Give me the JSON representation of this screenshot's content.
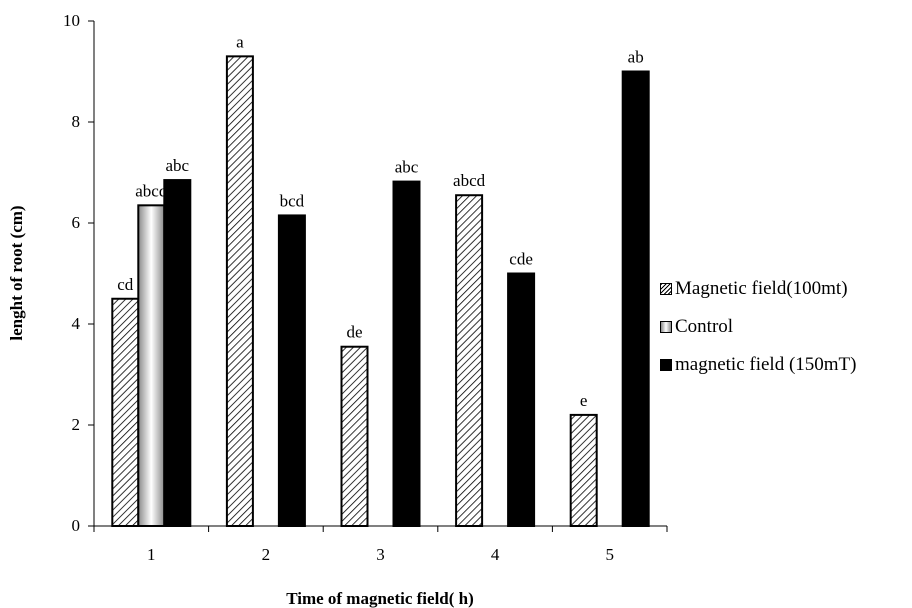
{
  "chart_data": {
    "type": "bar",
    "xlabel": "Time of magnetic field( h)",
    "ylabel": "lenght  of root (cm)",
    "ylim": [
      0,
      10
    ],
    "yticks": [
      "0",
      "2",
      "4",
      "6",
      "8",
      "10"
    ],
    "categories": [
      "1",
      "2",
      "3",
      "4",
      "5"
    ],
    "series": [
      {
        "name": "Magnetic field(100mt)",
        "values": [
          4.5,
          9.3,
          3.55,
          6.55,
          2.2
        ],
        "labels": [
          "cd",
          "a",
          "de",
          "abcd",
          "e"
        ]
      },
      {
        "name": "Control",
        "values": [
          6.35,
          null,
          null,
          null,
          null
        ],
        "labels": [
          "abcd",
          "",
          "",
          "",
          ""
        ]
      },
      {
        "name": "magnetic field (150mT)",
        "values": [
          6.85,
          6.15,
          6.82,
          5.0,
          9.0
        ],
        "labels": [
          "abc",
          "bcd",
          "abc",
          "cde",
          "ab"
        ]
      }
    ],
    "grid": false,
    "legend_position": "right"
  }
}
